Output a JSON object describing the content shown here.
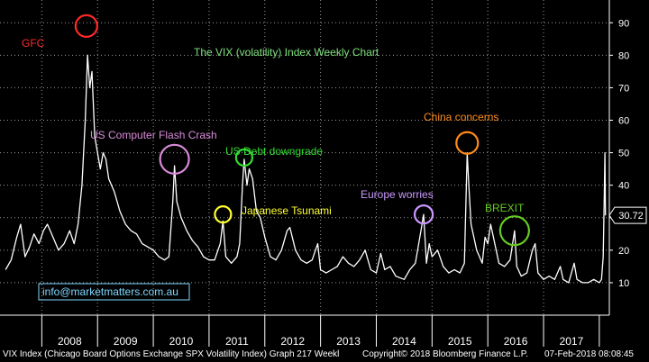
{
  "chart_data": {
    "type": "line",
    "title": "The VIX (volatility) Index Weekly Chart",
    "watermark": "info@marketmatters.com.au",
    "x_tick_labels": [
      "2008",
      "2009",
      "2010",
      "2011",
      "2012",
      "2013",
      "2014",
      "2015",
      "2016",
      "2017"
    ],
    "y_tick_labels": [
      10,
      20,
      30,
      40,
      50,
      60,
      70,
      80,
      90
    ],
    "ylim": [
      0,
      97
    ],
    "last_value_label": "30.72",
    "series": [
      {
        "color": "#ffffff",
        "points": [
          [
            2007.35,
            14
          ],
          [
            2007.45,
            17
          ],
          [
            2007.55,
            24
          ],
          [
            2007.62,
            28
          ],
          [
            2007.7,
            18
          ],
          [
            2007.78,
            21
          ],
          [
            2007.86,
            25
          ],
          [
            2007.95,
            22
          ],
          [
            2008.03,
            26
          ],
          [
            2008.1,
            28
          ],
          [
            2008.2,
            24
          ],
          [
            2008.3,
            20
          ],
          [
            2008.4,
            22
          ],
          [
            2008.5,
            26
          ],
          [
            2008.58,
            22
          ],
          [
            2008.65,
            28
          ],
          [
            2008.72,
            40
          ],
          [
            2008.78,
            60
          ],
          [
            2008.82,
            80
          ],
          [
            2008.86,
            70
          ],
          [
            2008.9,
            75
          ],
          [
            2008.95,
            55
          ],
          [
            2009.0,
            50
          ],
          [
            2009.05,
            45
          ],
          [
            2009.1,
            50
          ],
          [
            2009.15,
            48
          ],
          [
            2009.2,
            42
          ],
          [
            2009.3,
            38
          ],
          [
            2009.4,
            32
          ],
          [
            2009.5,
            28
          ],
          [
            2009.6,
            26
          ],
          [
            2009.7,
            25
          ],
          [
            2009.8,
            22
          ],
          [
            2009.9,
            21
          ],
          [
            2010.0,
            20
          ],
          [
            2010.1,
            18
          ],
          [
            2010.2,
            17
          ],
          [
            2010.28,
            18
          ],
          [
            2010.35,
            35
          ],
          [
            2010.38,
            46
          ],
          [
            2010.42,
            35
          ],
          [
            2010.5,
            30
          ],
          [
            2010.6,
            26
          ],
          [
            2010.7,
            23
          ],
          [
            2010.8,
            21
          ],
          [
            2010.9,
            18
          ],
          [
            2011.0,
            17
          ],
          [
            2011.1,
            17
          ],
          [
            2011.2,
            22
          ],
          [
            2011.25,
            29
          ],
          [
            2011.3,
            18
          ],
          [
            2011.4,
            16
          ],
          [
            2011.5,
            18
          ],
          [
            2011.55,
            22
          ],
          [
            2011.6,
            40
          ],
          [
            2011.63,
            48
          ],
          [
            2011.68,
            40
          ],
          [
            2011.72,
            45
          ],
          [
            2011.78,
            42
          ],
          [
            2011.85,
            32
          ],
          [
            2011.92,
            30
          ],
          [
            2012.0,
            24
          ],
          [
            2012.1,
            18
          ],
          [
            2012.2,
            17
          ],
          [
            2012.3,
            20
          ],
          [
            2012.4,
            26
          ],
          [
            2012.45,
            27
          ],
          [
            2012.55,
            20
          ],
          [
            2012.65,
            17
          ],
          [
            2012.75,
            16
          ],
          [
            2012.85,
            17
          ],
          [
            2012.95,
            22
          ],
          [
            2013.0,
            14
          ],
          [
            2013.1,
            13
          ],
          [
            2013.2,
            14
          ],
          [
            2013.3,
            15
          ],
          [
            2013.4,
            18
          ],
          [
            2013.5,
            16
          ],
          [
            2013.6,
            15
          ],
          [
            2013.7,
            17
          ],
          [
            2013.8,
            20
          ],
          [
            2013.9,
            14
          ],
          [
            2014.0,
            13
          ],
          [
            2014.08,
            19
          ],
          [
            2014.15,
            14
          ],
          [
            2014.25,
            15
          ],
          [
            2014.35,
            12
          ],
          [
            2014.5,
            11
          ],
          [
            2014.6,
            14
          ],
          [
            2014.7,
            16
          ],
          [
            2014.8,
            26
          ],
          [
            2014.85,
            31
          ],
          [
            2014.9,
            16
          ],
          [
            2014.95,
            22
          ],
          [
            2015.0,
            18
          ],
          [
            2015.1,
            20
          ],
          [
            2015.2,
            15
          ],
          [
            2015.3,
            13
          ],
          [
            2015.4,
            14
          ],
          [
            2015.5,
            13
          ],
          [
            2015.58,
            16
          ],
          [
            2015.63,
            50
          ],
          [
            2015.66,
            40
          ],
          [
            2015.7,
            28
          ],
          [
            2015.8,
            20
          ],
          [
            2015.9,
            16
          ],
          [
            2015.95,
            24
          ],
          [
            2016.0,
            22
          ],
          [
            2016.05,
            28
          ],
          [
            2016.1,
            24
          ],
          [
            2016.2,
            16
          ],
          [
            2016.3,
            15
          ],
          [
            2016.4,
            17
          ],
          [
            2016.48,
            26
          ],
          [
            2016.52,
            15
          ],
          [
            2016.6,
            12
          ],
          [
            2016.7,
            13
          ],
          [
            2016.8,
            20
          ],
          [
            2016.85,
            22
          ],
          [
            2016.9,
            13
          ],
          [
            2017.0,
            11
          ],
          [
            2017.1,
            12
          ],
          [
            2017.2,
            11
          ],
          [
            2017.3,
            15
          ],
          [
            2017.35,
            11
          ],
          [
            2017.45,
            10
          ],
          [
            2017.55,
            16
          ],
          [
            2017.6,
            11
          ],
          [
            2017.7,
            10
          ],
          [
            2017.8,
            10
          ],
          [
            2017.9,
            11
          ],
          [
            2018.0,
            10
          ],
          [
            2018.04,
            11
          ],
          [
            2018.07,
            18
          ],
          [
            2018.09,
            37
          ],
          [
            2018.1,
            50
          ],
          [
            2018.11,
            30.72
          ]
        ]
      }
    ],
    "annotations": [
      {
        "text": "GFC",
        "color": "#ff2a2a",
        "circle": {
          "x": 2008.8,
          "y": 89,
          "r": 12
        }
      },
      {
        "text": "US Computer Flash Crash",
        "color": "#d98ad9",
        "circle": {
          "x": 2010.38,
          "y": 48,
          "r": 16
        }
      },
      {
        "text": "US Debt downgrade",
        "color": "#33dd33",
        "circle": {
          "x": 2011.63,
          "y": 48.5,
          "r": 9
        }
      },
      {
        "text": "Japanese Tsunami",
        "color": "#ffff33",
        "circle": {
          "x": 2011.25,
          "y": 31,
          "r": 9
        }
      },
      {
        "text": "Europe worries",
        "color": "#cc99ff",
        "circle": {
          "x": 2014.85,
          "y": 31,
          "r": 10
        }
      },
      {
        "text": "China concerns",
        "color": "#ff8c1a",
        "circle": {
          "x": 2015.63,
          "y": 53,
          "r": 12
        }
      },
      {
        "text": "BREXIT",
        "color": "#66cc22",
        "circle": {
          "x": 2016.48,
          "y": 26,
          "r": 16
        }
      }
    ],
    "grid": true,
    "background": "#000000",
    "line_color": "#ffffff"
  },
  "footer": {
    "left": "VIX Index (Chicago Board Options Exchange SPX Volatility Index) Graph 217  Weekl",
    "center": "Copyright© 2018 Bloomberg Finance L.P.",
    "right": "07-Feb-2018 08:08:45"
  }
}
